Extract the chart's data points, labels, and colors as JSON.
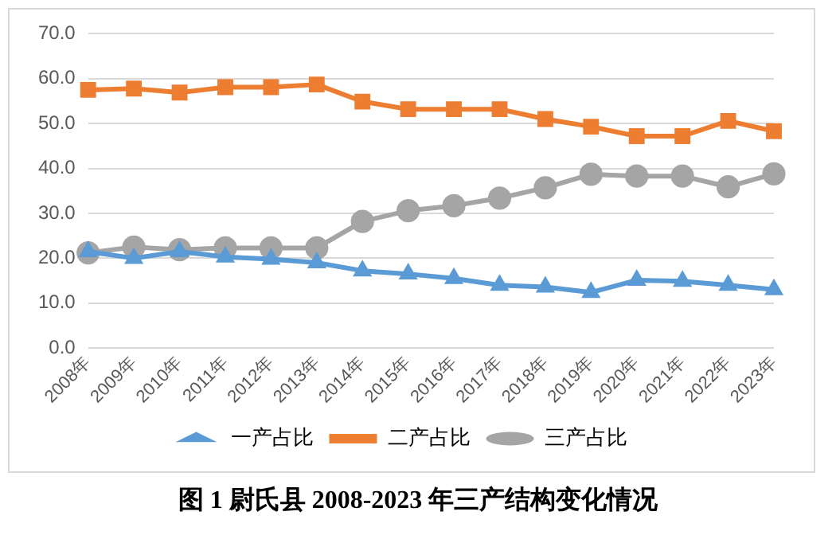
{
  "chart_data": {
    "type": "line",
    "title": "图 1 尉氏县 2008-2023 年三产结构变化情况",
    "categories": [
      "2008年",
      "2009年",
      "2010年",
      "2011年",
      "2012年",
      "2013年",
      "2014年",
      "2015年",
      "2016年",
      "2017年",
      "2018年",
      "2019年",
      "2020年",
      "2021年",
      "2022年",
      "2023年"
    ],
    "series": [
      {
        "name": "一产占比",
        "color": "#5b9bd5",
        "marker": "triangle",
        "values": [
          21.5,
          20.0,
          21.5,
          20.3,
          19.8,
          19.0,
          17.2,
          16.5,
          15.5,
          14.0,
          13.6,
          12.4,
          15.1,
          14.9,
          14.0,
          13.0
        ]
      },
      {
        "name": "二产占比",
        "color": "#ed7d31",
        "marker": "square",
        "values": [
          57.5,
          57.8,
          56.9,
          58.1,
          58.1,
          58.7,
          54.9,
          53.2,
          53.2,
          53.2,
          51.0,
          49.3,
          47.2,
          47.2,
          50.6,
          48.3
        ]
      },
      {
        "name": "三产占比",
        "color": "#a5a5a5",
        "marker": "circle",
        "values": [
          21.2,
          22.5,
          21.9,
          22.3,
          22.3,
          22.3,
          28.2,
          30.6,
          31.7,
          33.4,
          35.7,
          38.7,
          38.3,
          38.3,
          35.9,
          38.8
        ]
      }
    ],
    "ylim": [
      0,
      70
    ],
    "yticks": [
      {
        "value": 0,
        "label": "0.0"
      },
      {
        "value": 10,
        "label": "10.0"
      },
      {
        "value": 20,
        "label": "20.0"
      },
      {
        "value": 30,
        "label": "30.0"
      },
      {
        "value": 40,
        "label": "40.0"
      },
      {
        "value": 50,
        "label": "50.0"
      },
      {
        "value": 60,
        "label": "60.0"
      },
      {
        "value": 70,
        "label": "70.0"
      }
    ],
    "grid": "y",
    "legend": "bottom",
    "line_style": "solid"
  }
}
